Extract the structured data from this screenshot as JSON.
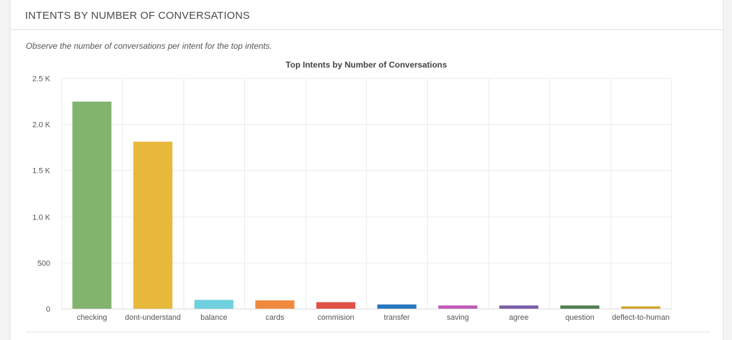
{
  "card": {
    "title": "INTENTS BY NUMBER OF CONVERSATIONS",
    "description": "Observe the number of conversations per intent for the top intents."
  },
  "chart_data": {
    "type": "bar",
    "title": "Top Intents by Number of Conversations",
    "xlabel": "",
    "ylabel": "",
    "categories": [
      "checking",
      "dont-understand",
      "balance",
      "cards",
      "commision",
      "transfer",
      "saving",
      "agree",
      "question",
      "deflect-to-human"
    ],
    "values": [
      2245,
      1810,
      95,
      90,
      70,
      45,
      35,
      35,
      35,
      25
    ],
    "colors": [
      "#82b46e",
      "#e8b93a",
      "#6fd0e0",
      "#ef8a3f",
      "#e05047",
      "#2879bf",
      "#c05bb6",
      "#7b5ea8",
      "#4f8050",
      "#d4a52a"
    ],
    "ylim": [
      0,
      2500
    ],
    "yticks": [
      0,
      500,
      1000,
      1500,
      2000,
      2500
    ],
    "ytick_labels": [
      "0",
      "500",
      "1.0 K",
      "1.5 K",
      "2.0 K",
      "2.5 K"
    ],
    "grid": true,
    "legend": "none"
  }
}
